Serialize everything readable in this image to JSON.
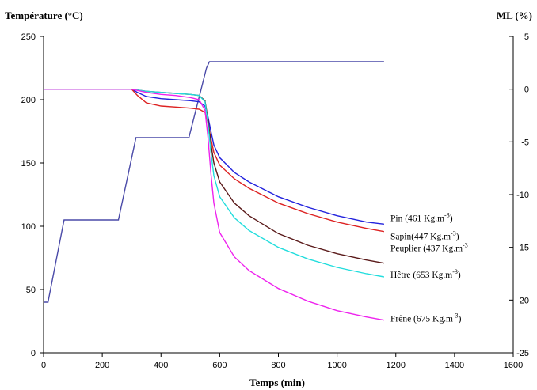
{
  "chart_data": {
    "type": "line",
    "title": "",
    "xlabel": "Temps (min)",
    "ylabel_left": "Température (°C)",
    "ylabel_right": "ML (%)",
    "xlim": [
      0,
      1600
    ],
    "ylim_left": [
      0,
      250
    ],
    "ylim_right": [
      -25,
      5
    ],
    "x_ticks": [
      0,
      200,
      400,
      600,
      800,
      1000,
      1200,
      1400,
      1600
    ],
    "y_ticks_left": [
      0,
      50,
      100,
      150,
      200,
      250
    ],
    "y_ticks_right": [
      5,
      0,
      -5,
      -10,
      -15,
      -20,
      -25
    ],
    "x_tick_labels": [
      "0",
      "200",
      "400",
      "600",
      "800",
      "1000",
      "1200",
      "1400",
      "1600"
    ],
    "y_tick_labels_left": [
      "0",
      "50",
      "100",
      "150",
      "200",
      "250"
    ],
    "y_tick_labels_right": [
      "5",
      "0",
      "-5",
      "-10",
      "-15",
      "-20",
      "-25"
    ],
    "grid": false,
    "temperature_profile": {
      "axis": "left",
      "color": "#4a4aa8",
      "x": [
        0,
        15,
        70,
        255,
        315,
        495,
        555,
        565,
        1160
      ],
      "y": [
        40,
        40,
        105,
        105,
        170,
        170,
        225,
        230,
        230
      ]
    },
    "series": [
      {
        "name": "Pin",
        "label_main": "Pin (461 Kg.m",
        "label_sup": "-3",
        "label_end": ")",
        "axis": "right",
        "color": "#2222dd",
        "x": [
          0,
          300,
          320,
          350,
          400,
          450,
          500,
          530,
          550,
          560,
          570,
          580,
          600,
          650,
          700,
          800,
          900,
          1000,
          1100,
          1160
        ],
        "y": [
          0,
          0,
          -0.3,
          -0.7,
          -0.9,
          -1.0,
          -1.1,
          -1.2,
          -1.6,
          -2.6,
          -4.0,
          -5.3,
          -6.5,
          -7.9,
          -8.8,
          -10.2,
          -11.2,
          -12.0,
          -12.6,
          -12.8
        ]
      },
      {
        "name": "Sapin",
        "label_main": "Sapin(447 Kg.m",
        "label_sup": "-3",
        "label_end": ")",
        "axis": "right",
        "color": "#dd2222",
        "x": [
          0,
          300,
          320,
          350,
          400,
          450,
          500,
          530,
          550,
          560,
          570,
          580,
          600,
          650,
          700,
          800,
          900,
          1000,
          1100,
          1160
        ],
        "y": [
          0,
          0,
          -0.6,
          -1.3,
          -1.6,
          -1.7,
          -1.8,
          -1.9,
          -2.2,
          -3.2,
          -4.7,
          -6.0,
          -7.2,
          -8.5,
          -9.4,
          -10.8,
          -11.8,
          -12.6,
          -13.2,
          -13.5
        ]
      },
      {
        "name": "Peuplier",
        "label_main": "Peuplier (437 Kg.m",
        "label_sup": "-3",
        "label_end": "",
        "axis": "right",
        "color": "#5a1a1a",
        "x": [
          0,
          300,
          350,
          400,
          450,
          500,
          530,
          550,
          560,
          570,
          580,
          600,
          650,
          700,
          800,
          900,
          1000,
          1100,
          1160
        ],
        "y": [
          0,
          0,
          -0.2,
          -0.3,
          -0.4,
          -0.5,
          -0.6,
          -1.1,
          -2.8,
          -5.2,
          -7.0,
          -8.8,
          -10.8,
          -12.0,
          -13.7,
          -14.8,
          -15.6,
          -16.2,
          -16.5
        ]
      },
      {
        "name": "Hêtre",
        "label_main": "Hêtre (653 Kg.m",
        "label_sup": "-3",
        "label_end": ")",
        "axis": "right",
        "color": "#22dddd",
        "x": [
          0,
          300,
          350,
          400,
          450,
          500,
          530,
          550,
          560,
          570,
          580,
          600,
          650,
          700,
          800,
          900,
          1000,
          1100,
          1160
        ],
        "y": [
          0,
          0,
          -0.2,
          -0.3,
          -0.4,
          -0.5,
          -0.6,
          -1.2,
          -3.2,
          -6.0,
          -8.2,
          -10.2,
          -12.2,
          -13.4,
          -15.0,
          -16.1,
          -16.9,
          -17.5,
          -17.8
        ]
      },
      {
        "name": "Frêne",
        "label_main": "Frêne (675 Kg.m",
        "label_sup": "-3",
        "label_end": ")",
        "axis": "right",
        "color": "#ee22ee",
        "x": [
          0,
          300,
          350,
          400,
          450,
          500,
          530,
          550,
          560,
          570,
          580,
          600,
          650,
          700,
          800,
          900,
          1000,
          1100,
          1160
        ],
        "y": [
          0,
          0,
          -0.3,
          -0.5,
          -0.6,
          -0.8,
          -1.0,
          -2.0,
          -4.5,
          -8.0,
          -10.8,
          -13.6,
          -15.9,
          -17.2,
          -18.9,
          -20.1,
          -21.0,
          -21.6,
          -21.9
        ]
      }
    ]
  }
}
